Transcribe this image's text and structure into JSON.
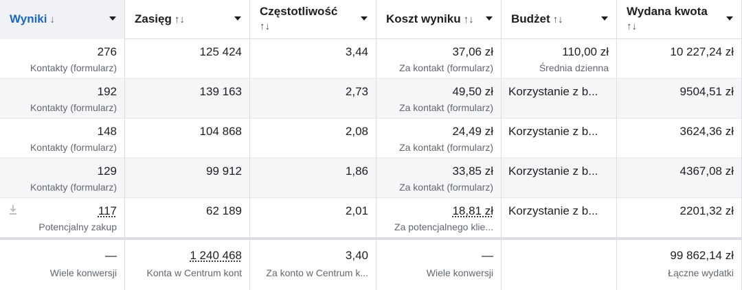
{
  "columns": [
    {
      "label": "Wyniki",
      "sort_icon": "↓"
    },
    {
      "label": "Zasięg",
      "sort_icon": "↑↓"
    },
    {
      "label": "Częstotliwość",
      "sort_icon": "↑↓"
    },
    {
      "label": "Koszt wyniku",
      "sort_icon": "↑↓"
    },
    {
      "label": "Budżet",
      "sort_icon": "↑↓"
    },
    {
      "label": "Wydana kwota",
      "sort_icon": "↑↓"
    }
  ],
  "rows": [
    {
      "results": "276",
      "results_type": "Kontakty (formularz)",
      "reach": "125 424",
      "frequency": "3,44",
      "cost": "37,06 zł",
      "cost_type": "Za kontakt (formularz)",
      "budget": "110,00 zł",
      "budget_type": "Średnia dzienna",
      "spent": "10 227,24 zł"
    },
    {
      "results": "192",
      "results_type": "Kontakty (formularz)",
      "reach": "139 163",
      "frequency": "2,73",
      "cost": "49,50 zł",
      "cost_type": "Za kontakt (formularz)",
      "budget": "Korzystanie z b...",
      "budget_type": "",
      "spent": "9504,51 zł"
    },
    {
      "results": "148",
      "results_type": "Kontakty (formularz)",
      "reach": "104 868",
      "frequency": "2,08",
      "cost": "24,49 zł",
      "cost_type": "Za kontakt (formularz)",
      "budget": "Korzystanie z b...",
      "budget_type": "",
      "spent": "3624,36 zł"
    },
    {
      "results": "129",
      "results_type": "Kontakty (formularz)",
      "reach": "99 912",
      "frequency": "1,86",
      "cost": "33,85 zł",
      "cost_type": "Za kontakt (formularz)",
      "budget": "Korzystanie z b...",
      "budget_type": "",
      "spent": "4367,08 zł"
    },
    {
      "results": "117",
      "results_type": "Potencjalny zakup",
      "reach": "62 189",
      "frequency": "2,01",
      "cost": "18,81 zł",
      "cost_type": "Za potencjalnego klie...",
      "budget": "Korzystanie z b...",
      "budget_type": "",
      "spent": "2201,32 zł"
    }
  ],
  "totals": {
    "results": "—",
    "results_type": "Wiele konwersji",
    "reach": "1 240 468",
    "reach_type": "Konta w Centrum kont",
    "frequency": "3,40",
    "frequency_type": "Za konto w Centrum k...",
    "cost": "—",
    "cost_type": "Wiele konwersji",
    "spent": "99 862,14 zł",
    "spent_type": "Łączne wydatki"
  },
  "icons": {
    "download": "download-icon",
    "dropdown": "chevron-down-icon"
  },
  "colors": {
    "accent": "#1a67c4",
    "header_active_bg": "#f0f2f5",
    "row_alt_bg": "#f5f6f7",
    "secondary_text": "#606770"
  }
}
